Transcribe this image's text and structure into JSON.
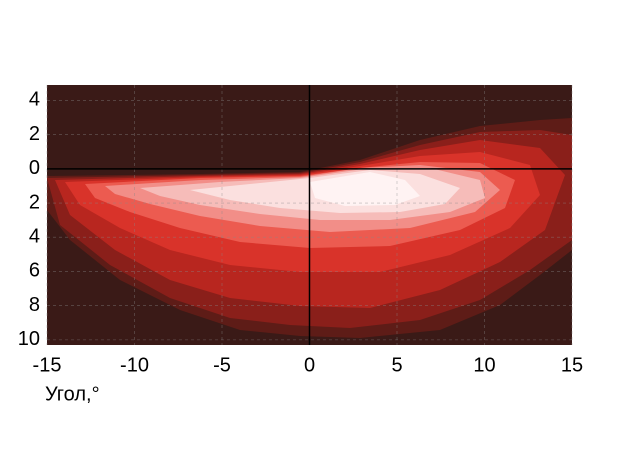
{
  "chart_data": {
    "type": "contour",
    "xlabel": "Угол,°",
    "xlim": [
      -15,
      15
    ],
    "xticks": [
      -15,
      -10,
      -5,
      0,
      5,
      10,
      15
    ],
    "ylim": [
      -10.3,
      4.9
    ],
    "yticks": [
      4,
      2,
      0,
      {
        "value": -2,
        "label": "2"
      },
      {
        "value": -4,
        "label": "4"
      },
      {
        "value": -6,
        "label": "6"
      },
      {
        "value": -8,
        "label": "8"
      },
      {
        "value": -10,
        "label": "10"
      }
    ],
    "grid": true
  }
}
